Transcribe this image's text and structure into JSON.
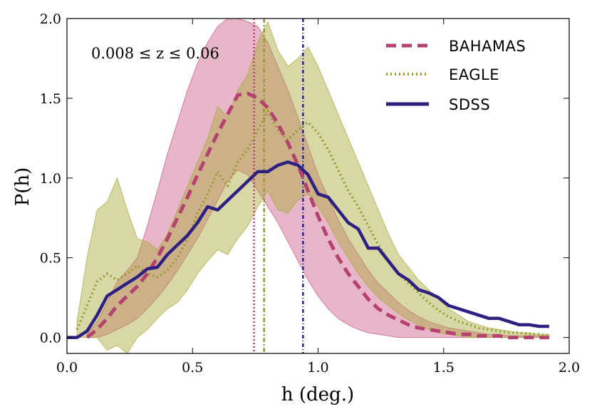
{
  "chart_data": {
    "type": "line",
    "title": "",
    "xlabel": "h (deg.)",
    "ylabel": "P(h)",
    "xlim": [
      0.0,
      2.0
    ],
    "ylim": [
      -0.1,
      2.0
    ],
    "xticks": [
      0.0,
      0.5,
      1.0,
      1.5,
      2.0
    ],
    "xtick_labels": [
      "0.0",
      "0.5",
      "1.0",
      "1.5",
      "2.0"
    ],
    "yticks": [
      0.0,
      0.5,
      1.0,
      1.5,
      2.0
    ],
    "ytick_labels": [
      "0.0",
      "0.5",
      "1.0",
      "1.5",
      "2.0"
    ],
    "annotation": "0.008 ≤ z ≤ 0.06",
    "legend_position": "top-right",
    "series": [
      {
        "name": "BAHAMAS",
        "style": "dashed",
        "color": "#b5416e",
        "x": [
          0.08,
          0.12,
          0.16,
          0.2,
          0.24,
          0.28,
          0.32,
          0.36,
          0.4,
          0.44,
          0.48,
          0.52,
          0.56,
          0.6,
          0.64,
          0.68,
          0.72,
          0.76,
          0.8,
          0.84,
          0.88,
          0.92,
          0.96,
          1.0,
          1.04,
          1.08,
          1.12,
          1.16,
          1.2,
          1.24,
          1.28,
          1.32,
          1.36,
          1.4,
          1.44,
          1.48,
          1.52,
          1.56,
          1.6,
          1.64,
          1.68,
          1.72,
          1.76,
          1.8,
          1.84,
          1.88,
          1.92
        ],
        "y": [
          0.0,
          0.05,
          0.12,
          0.2,
          0.26,
          0.32,
          0.4,
          0.5,
          0.62,
          0.75,
          0.88,
          1.02,
          1.15,
          1.28,
          1.4,
          1.52,
          1.53,
          1.5,
          1.44,
          1.34,
          1.22,
          1.08,
          0.92,
          0.76,
          0.62,
          0.5,
          0.4,
          0.32,
          0.24,
          0.18,
          0.14,
          0.11,
          0.08,
          0.06,
          0.05,
          0.04,
          0.03,
          0.02,
          0.02,
          0.01,
          0.01,
          0.01,
          0.0,
          0.0,
          0.0,
          0.0,
          0.0
        ],
        "band_low": [
          0.0,
          0.0,
          0.02,
          0.05,
          0.08,
          0.12,
          0.18,
          0.25,
          0.33,
          0.42,
          0.52,
          0.62,
          0.74,
          0.86,
          0.98,
          1.05,
          1.02,
          0.92,
          0.82,
          0.72,
          0.6,
          0.48,
          0.36,
          0.26,
          0.18,
          0.12,
          0.08,
          0.05,
          0.03,
          0.02,
          0.01,
          0.0,
          0.0,
          0.0,
          0.0,
          0.0,
          0.0,
          0.0,
          0.0,
          0.0,
          0.0,
          0.0,
          0.0,
          0.0,
          0.0,
          0.0,
          0.0
        ],
        "band_high": [
          0.02,
          0.1,
          0.22,
          0.35,
          0.42,
          0.5,
          0.7,
          0.92,
          1.15,
          1.35,
          1.55,
          1.72,
          1.85,
          1.95,
          2.0,
          2.0,
          1.98,
          1.95,
          1.85,
          1.7,
          1.55,
          1.38,
          1.2,
          1.02,
          0.88,
          0.74,
          0.62,
          0.52,
          0.42,
          0.34,
          0.28,
          0.22,
          0.17,
          0.13,
          0.1,
          0.08,
          0.06,
          0.05,
          0.04,
          0.03,
          0.02,
          0.02,
          0.01,
          0.01,
          0.01,
          0.01,
          0.01
        ],
        "vline": 0.745
      },
      {
        "name": "EAGLE",
        "style": "dotted",
        "color": "#9a9a2e",
        "x": [
          0.04,
          0.08,
          0.12,
          0.16,
          0.2,
          0.24,
          0.28,
          0.32,
          0.36,
          0.4,
          0.44,
          0.48,
          0.52,
          0.56,
          0.6,
          0.64,
          0.68,
          0.72,
          0.76,
          0.8,
          0.84,
          0.88,
          0.92,
          0.96,
          1.0,
          1.04,
          1.08,
          1.12,
          1.16,
          1.2,
          1.24,
          1.28,
          1.32,
          1.36,
          1.4,
          1.44,
          1.48,
          1.52,
          1.56,
          1.6,
          1.64,
          1.68,
          1.72,
          1.76,
          1.8,
          1.84,
          1.88,
          1.92
        ],
        "y": [
          0.05,
          0.2,
          0.35,
          0.4,
          0.36,
          0.4,
          0.45,
          0.4,
          0.38,
          0.42,
          0.5,
          0.62,
          0.78,
          0.9,
          1.04,
          0.95,
          1.1,
          1.18,
          1.3,
          1.42,
          1.3,
          1.24,
          1.3,
          1.35,
          1.28,
          1.18,
          1.05,
          0.92,
          0.82,
          0.7,
          0.58,
          0.48,
          0.4,
          0.34,
          0.28,
          0.22,
          0.17,
          0.13,
          0.1,
          0.08,
          0.06,
          0.05,
          0.04,
          0.03,
          0.03,
          0.02,
          0.02,
          0.01
        ],
        "band_low": [
          0.0,
          0.0,
          0.0,
          -0.08,
          -0.05,
          -0.1,
          0.0,
          0.05,
          0.12,
          0.18,
          0.22,
          0.3,
          0.4,
          0.48,
          0.55,
          0.52,
          0.62,
          0.7,
          0.82,
          0.92,
          0.8,
          0.78,
          0.86,
          0.9,
          0.82,
          0.72,
          0.6,
          0.5,
          0.4,
          0.32,
          0.25,
          0.2,
          0.15,
          0.11,
          0.08,
          0.05,
          0.03,
          0.02,
          0.01,
          0.0,
          0.0,
          0.0,
          0.0,
          0.0,
          0.0,
          0.0,
          0.0,
          0.0
        ],
        "band_high": [
          0.1,
          0.5,
          0.8,
          0.85,
          1.0,
          0.8,
          0.62,
          0.6,
          0.55,
          0.65,
          0.8,
          0.95,
          1.1,
          1.25,
          1.45,
          1.38,
          1.55,
          1.65,
          1.85,
          1.98,
          1.8,
          1.7,
          1.75,
          1.82,
          1.7,
          1.55,
          1.4,
          1.25,
          1.1,
          0.95,
          0.8,
          0.65,
          0.52,
          0.44,
          0.36,
          0.3,
          0.24,
          0.18,
          0.14,
          0.1,
          0.08,
          0.06,
          0.05,
          0.04,
          0.03,
          0.03,
          0.02,
          0.02
        ],
        "vline": 0.785
      },
      {
        "name": "SDSS",
        "style": "solid",
        "color": "#2e2080",
        "x": [
          0.0,
          0.04,
          0.08,
          0.12,
          0.16,
          0.2,
          0.24,
          0.28,
          0.32,
          0.36,
          0.4,
          0.44,
          0.48,
          0.52,
          0.56,
          0.6,
          0.64,
          0.68,
          0.72,
          0.76,
          0.8,
          0.84,
          0.88,
          0.92,
          0.96,
          1.0,
          1.04,
          1.08,
          1.12,
          1.16,
          1.2,
          1.24,
          1.28,
          1.32,
          1.36,
          1.4,
          1.44,
          1.48,
          1.52,
          1.56,
          1.6,
          1.64,
          1.68,
          1.72,
          1.76,
          1.8,
          1.84,
          1.88,
          1.92
        ],
        "y": [
          0.0,
          0.0,
          0.04,
          0.14,
          0.26,
          0.3,
          0.34,
          0.38,
          0.43,
          0.44,
          0.52,
          0.58,
          0.64,
          0.72,
          0.82,
          0.8,
          0.86,
          0.92,
          0.98,
          1.04,
          1.04,
          1.08,
          1.1,
          1.08,
          1.02,
          0.9,
          0.88,
          0.8,
          0.72,
          0.68,
          0.56,
          0.56,
          0.48,
          0.4,
          0.36,
          0.3,
          0.28,
          0.25,
          0.2,
          0.18,
          0.16,
          0.14,
          0.12,
          0.12,
          0.1,
          0.08,
          0.08,
          0.07,
          0.07
        ]
      }
    ],
    "vline_sdss": 0.94
  }
}
